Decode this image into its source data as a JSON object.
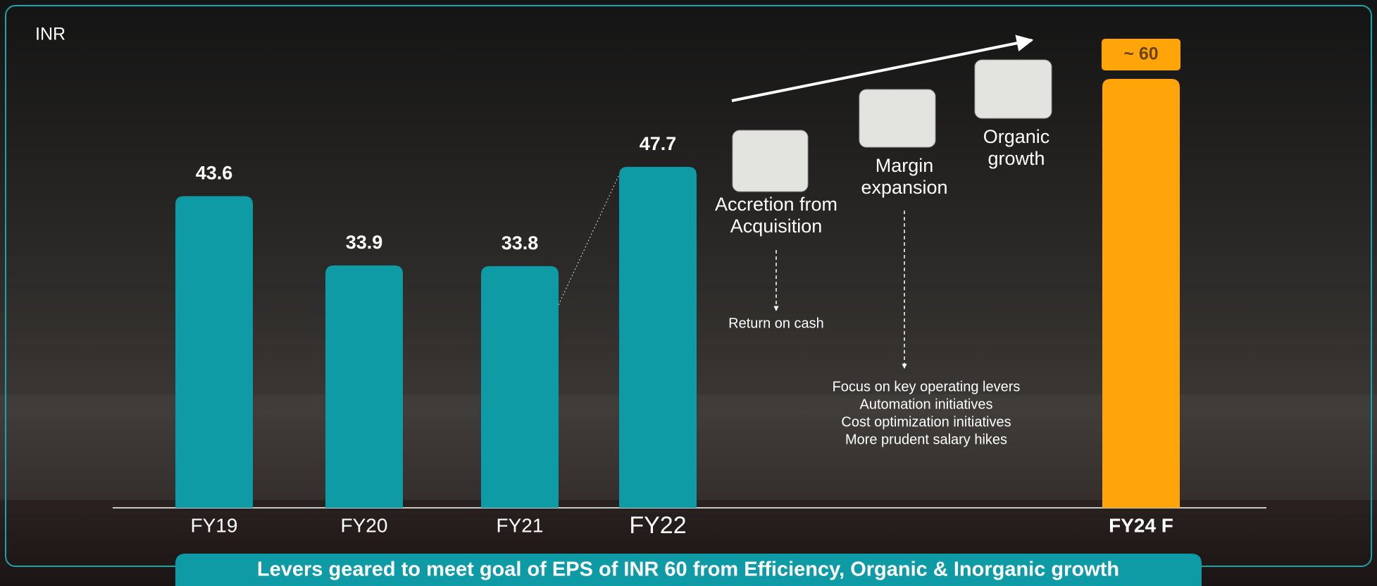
{
  "chart_data": {
    "type": "bar",
    "unit_label": "INR",
    "categories": [
      "FY19",
      "FY20",
      "FY21",
      "FY22",
      "FY24 F"
    ],
    "values": [
      43.6,
      33.9,
      33.8,
      47.7,
      60
    ],
    "value_labels": [
      "43.6",
      "33.9",
      "33.8",
      "47.7",
      "~ 60"
    ],
    "colors": [
      "#0e9ba6",
      "#0e9ba6",
      "#0e9ba6",
      "#0e9ba6",
      "#ffa409"
    ],
    "levers": [
      {
        "label_lines": [
          "Accretion from",
          "Acquisition"
        ],
        "details": [
          "Return on cash"
        ]
      },
      {
        "label_lines": [
          "Margin",
          "expansion"
        ],
        "details": [
          "Focus on key operating levers",
          "Automation initiatives",
          "Cost optimization initiatives",
          "More prudent salary hikes"
        ]
      },
      {
        "label_lines": [
          "Organic",
          "growth"
        ],
        "details": []
      }
    ],
    "footer": "Levers geared to meet goal of EPS of INR 60 from Efficiency, Organic & Inorganic growth"
  }
}
